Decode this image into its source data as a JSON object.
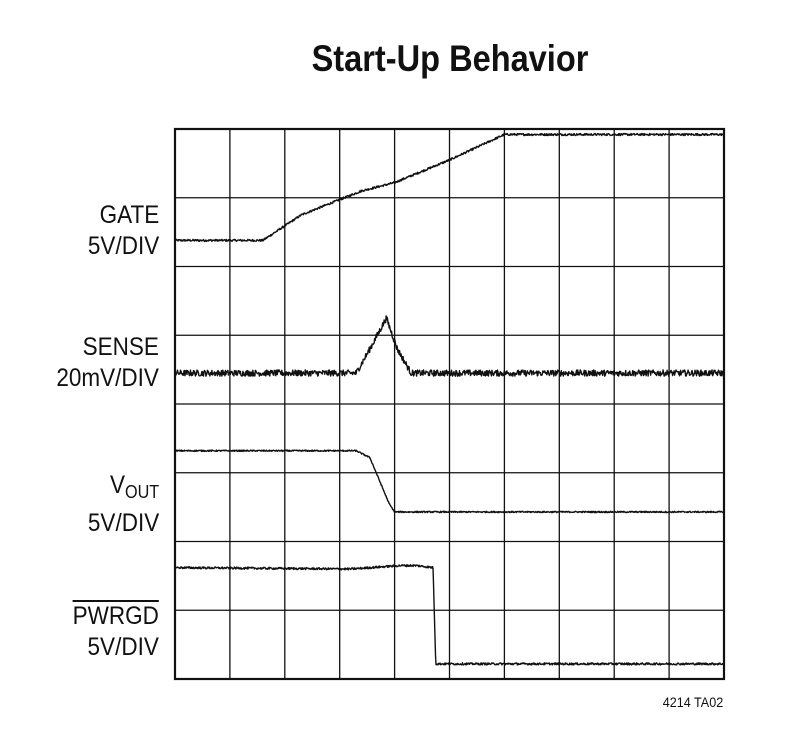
{
  "chart_data": {
    "type": "line",
    "title": "Start-Up Behavior",
    "figure_id": "4214 TA02",
    "grid": true,
    "divisions": {
      "x": 10,
      "y": 8
    },
    "ylim": [
      0,
      8
    ],
    "xlim": [
      0,
      10
    ],
    "series": [
      {
        "key": "gate",
        "name_line1": "GATE",
        "name_line2": "5V/DIV",
        "noise": 0.015,
        "points": [
          [
            0,
            6.38
          ],
          [
            1.6,
            6.38
          ],
          [
            2.3,
            6.75
          ],
          [
            3.4,
            7.1
          ],
          [
            4.0,
            7.22
          ],
          [
            5.0,
            7.55
          ],
          [
            6.0,
            7.92
          ],
          [
            10,
            7.92
          ]
        ]
      },
      {
        "key": "sense",
        "name_line1": "SENSE",
        "name_line2": "20mV/DIV",
        "noise": 0.045,
        "points": [
          [
            0,
            4.45
          ],
          [
            3.3,
            4.45
          ],
          [
            3.55,
            4.8
          ],
          [
            3.85,
            5.25
          ],
          [
            4.05,
            4.8
          ],
          [
            4.3,
            4.45
          ],
          [
            10,
            4.45
          ]
        ]
      },
      {
        "key": "vout",
        "name_line1": "V",
        "name_sub": "OUT",
        "name_line2": "5V/DIV",
        "noise": 0.01,
        "points": [
          [
            0,
            3.32
          ],
          [
            3.3,
            3.32
          ],
          [
            3.55,
            3.22
          ],
          [
            3.9,
            2.55
          ],
          [
            4.0,
            2.43
          ],
          [
            10,
            2.43
          ]
        ]
      },
      {
        "key": "pwrgd",
        "name_line1": "PWRGD",
        "name_overline": true,
        "name_line2": "5V/DIV",
        "noise": 0.015,
        "points": [
          [
            0,
            1.62
          ],
          [
            3.2,
            1.6
          ],
          [
            4.1,
            1.65
          ],
          [
            4.4,
            1.65
          ],
          [
            4.7,
            1.62
          ],
          [
            4.75,
            0.22
          ],
          [
            10,
            0.22
          ]
        ]
      }
    ]
  }
}
